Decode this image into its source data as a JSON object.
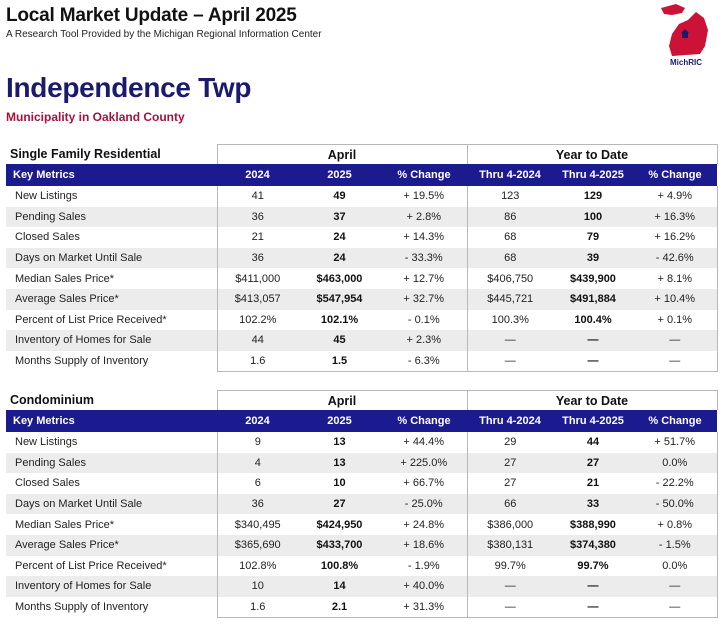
{
  "header": {
    "title": "Local Market Update – April 2025",
    "subtitle": "A Research Tool Provided by the Michigan Regional Information Center",
    "logo_text": "MichRIC",
    "logo_ring_text": "Michigan Regional Information Center"
  },
  "area": {
    "name": "Independence Twp",
    "subtitle": "Municipality in Oakland County"
  },
  "colors": {
    "brand_navy": "#1c1a8f",
    "title_navy": "#1c1a6e",
    "subtitle_red": "#a5143c",
    "logo_red": "#cc1236"
  },
  "single_family": {
    "category": "Single Family Residential",
    "period_label": "April",
    "ytd_label": "Year to Date",
    "columns": [
      "Key Metrics",
      "2024",
      "2025",
      "% Change",
      "Thru 4-2024",
      "Thru 4-2025",
      "% Change"
    ],
    "rows": [
      [
        "New Listings",
        "41",
        "49",
        "+ 19.5%",
        "123",
        "129",
        "+ 4.9%"
      ],
      [
        "Pending Sales",
        "36",
        "37",
        "+ 2.8%",
        "86",
        "100",
        "+ 16.3%"
      ],
      [
        "Closed Sales",
        "21",
        "24",
        "+ 14.3%",
        "68",
        "79",
        "+ 16.2%"
      ],
      [
        "Days on Market Until Sale",
        "36",
        "24",
        "- 33.3%",
        "68",
        "39",
        "- 42.6%"
      ],
      [
        "Median Sales Price*",
        "$411,000",
        "$463,000",
        "+ 12.7%",
        "$406,750",
        "$439,900",
        "+ 8.1%"
      ],
      [
        "Average Sales Price*",
        "$413,057",
        "$547,954",
        "+ 32.7%",
        "$445,721",
        "$491,884",
        "+ 10.4%"
      ],
      [
        "Percent of List Price Received*",
        "102.2%",
        "102.1%",
        "- 0.1%",
        "100.3%",
        "100.4%",
        "+ 0.1%"
      ],
      [
        "Inventory of Homes for Sale",
        "44",
        "45",
        "+ 2.3%",
        "—",
        "—",
        "—"
      ],
      [
        "Months Supply of Inventory",
        "1.6",
        "1.5",
        "- 6.3%",
        "—",
        "—",
        "—"
      ]
    ]
  },
  "condominium": {
    "category": "Condominium",
    "period_label": "April",
    "ytd_label": "Year to Date",
    "columns": [
      "Key Metrics",
      "2024",
      "2025",
      "% Change",
      "Thru 4-2024",
      "Thru 4-2025",
      "% Change"
    ],
    "rows": [
      [
        "New Listings",
        "9",
        "13",
        "+ 44.4%",
        "29",
        "44",
        "+ 51.7%"
      ],
      [
        "Pending Sales",
        "4",
        "13",
        "+ 225.0%",
        "27",
        "27",
        "0.0%"
      ],
      [
        "Closed Sales",
        "6",
        "10",
        "+ 66.7%",
        "27",
        "21",
        "- 22.2%"
      ],
      [
        "Days on Market Until Sale",
        "36",
        "27",
        "- 25.0%",
        "66",
        "33",
        "- 50.0%"
      ],
      [
        "Median Sales Price*",
        "$340,495",
        "$424,950",
        "+ 24.8%",
        "$386,000",
        "$388,990",
        "+ 0.8%"
      ],
      [
        "Average Sales Price*",
        "$365,690",
        "$433,700",
        "+ 18.6%",
        "$380,131",
        "$374,380",
        "- 1.5%"
      ],
      [
        "Percent of List Price Received*",
        "102.8%",
        "100.8%",
        "- 1.9%",
        "99.7%",
        "99.7%",
        "0.0%"
      ],
      [
        "Inventory of Homes for Sale",
        "10",
        "14",
        "+ 40.0%",
        "—",
        "—",
        "—"
      ],
      [
        "Months Supply of Inventory",
        "1.6",
        "2.1",
        "+ 31.3%",
        "—",
        "—",
        "—"
      ]
    ]
  }
}
